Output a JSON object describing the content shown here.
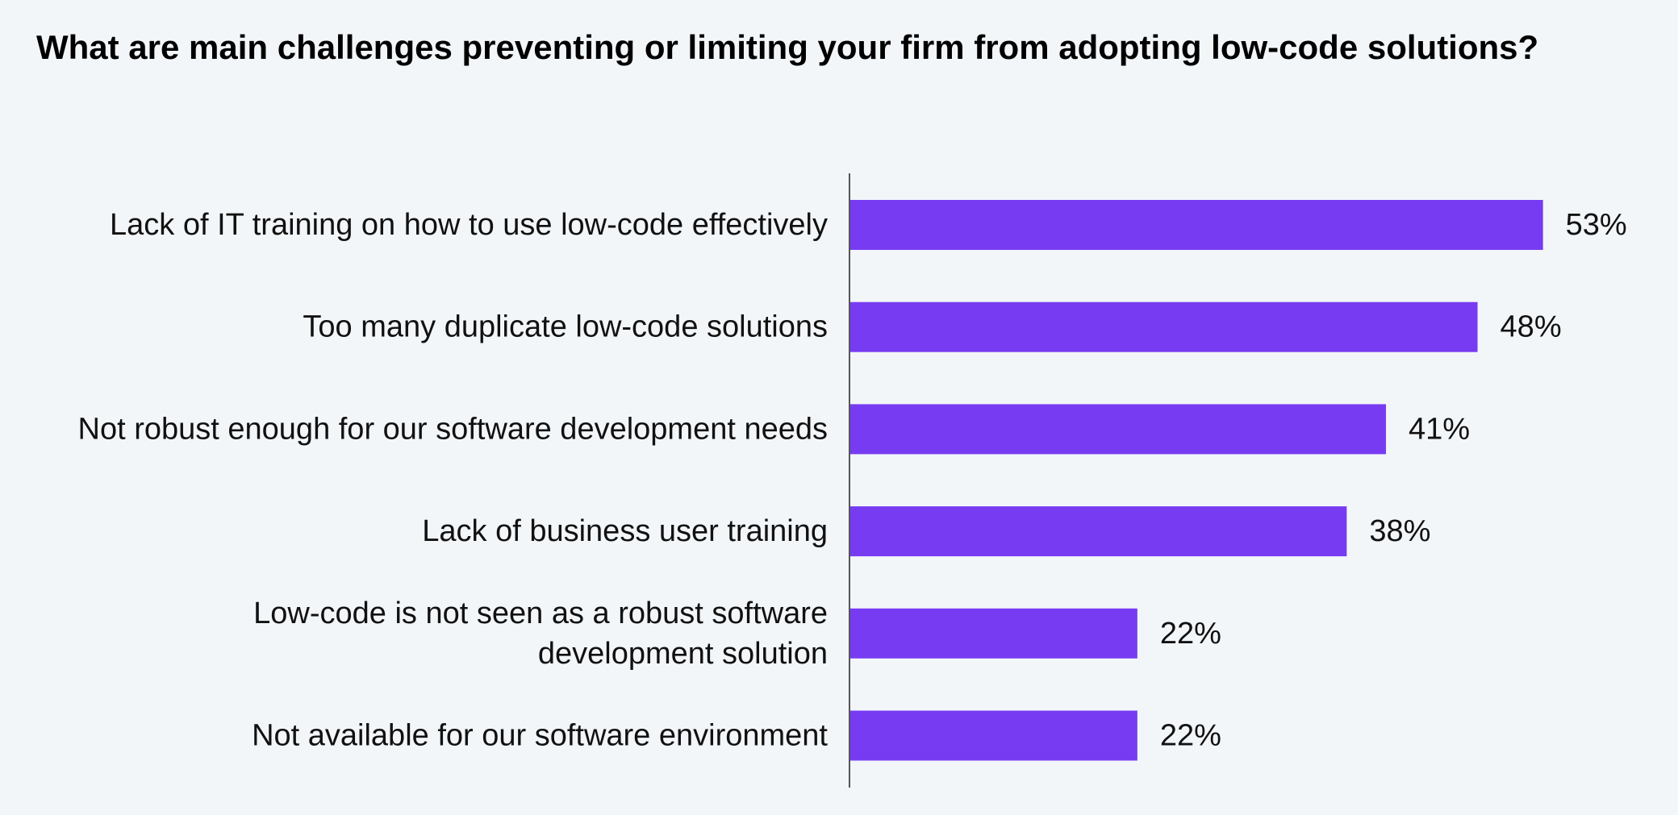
{
  "chart_data": {
    "type": "bar",
    "orientation": "horizontal",
    "title": "What are main challenges preventing or limiting your firm from adopting low-code solutions?",
    "categories": [
      [
        "Lack of IT training on how to use low-code effectively"
      ],
      [
        "Too many duplicate low-code solutions"
      ],
      [
        "Not robust enough for our software development needs"
      ],
      [
        "Lack of business user training"
      ],
      [
        "Low-code is not seen as a robust software",
        "development solution"
      ],
      [
        "Not available for our software environment"
      ]
    ],
    "values": [
      53,
      48,
      41,
      38,
      22,
      22
    ],
    "value_labels": [
      "53%",
      "48%",
      "41%",
      "38%",
      "22%",
      "22%"
    ],
    "value_unit": "%",
    "xlim": [
      0,
      100
    ],
    "bar_color": "#773cf2",
    "axis_color": "#555555",
    "grid": false,
    "legend": "none"
  }
}
